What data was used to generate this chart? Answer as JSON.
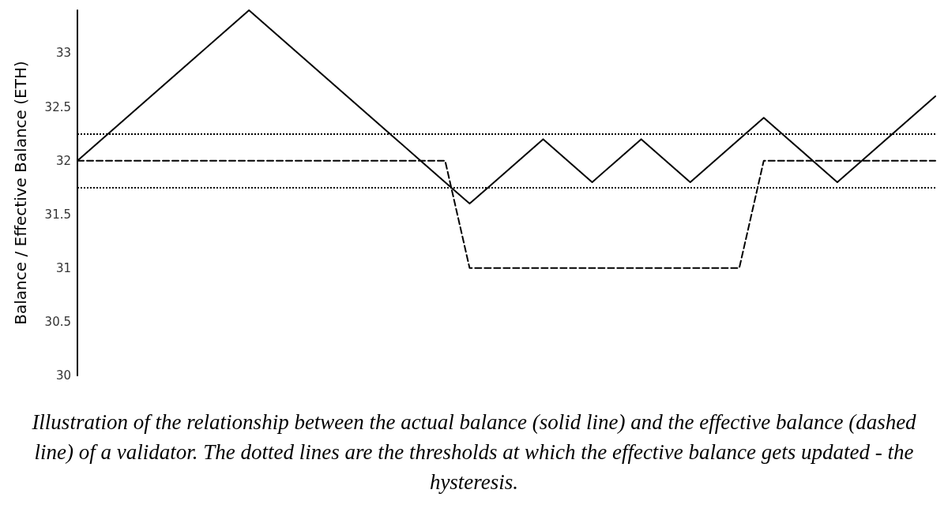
{
  "chart_data": {
    "type": "line",
    "ylabel": "Balance / Effective Balance (ETH)",
    "categories": [
      null,
      null,
      null,
      null,
      null,
      null,
      null,
      null,
      null,
      null,
      null,
      null,
      null,
      null,
      null,
      null,
      null,
      null,
      null,
      null,
      null,
      null,
      null,
      null,
      null,
      null,
      null,
      null,
      null,
      null,
      null,
      null,
      null,
      null,
      null,
      null
    ],
    "series": [
      {
        "color": "#000000",
        "line_style": "solid",
        "values": [
          32,
          32.2,
          32.4,
          32.6,
          32.8,
          33,
          33.2,
          33.4,
          33.2,
          33,
          32.8,
          32.6,
          32.4,
          32.2,
          32,
          31.8,
          31.6,
          31.8,
          32,
          32.2,
          32,
          31.8,
          32,
          32.2,
          32,
          31.8,
          32,
          32.2,
          32.4,
          32.2,
          32,
          31.8,
          32,
          32.2,
          32.4,
          32.6
        ]
      },
      {
        "color": "#000000",
        "line_style": "dashed",
        "values": [
          32,
          32,
          32,
          32,
          32,
          32,
          32,
          32,
          32,
          32,
          32,
          32,
          32,
          32,
          32,
          32,
          31,
          31,
          31,
          31,
          31,
          31,
          31,
          31,
          31,
          31,
          31,
          31,
          32,
          32,
          32,
          32,
          32,
          32,
          32,
          32
        ]
      }
    ],
    "ylim": [
      30,
      33.4
    ],
    "yticks": [
      30,
      30.5,
      31,
      31.5,
      32,
      32.5,
      33
    ],
    "ref_lines": [
      {
        "axis": "y",
        "value": 32.25,
        "line_style": "dotted",
        "color": "#000000"
      },
      {
        "axis": "y",
        "value": 31.75,
        "line_style": "dotted",
        "color": "#000000"
      }
    ],
    "grid": false,
    "marker": "none",
    "tick_labels": "y",
    "annotations": [
      "Illustration of the relationship between the actual balance (solid line) and the effective balance (dashed line) of a validator. The dotted lines are the thresholds at which the effective balance gets updated - the hysteresis."
    ]
  }
}
